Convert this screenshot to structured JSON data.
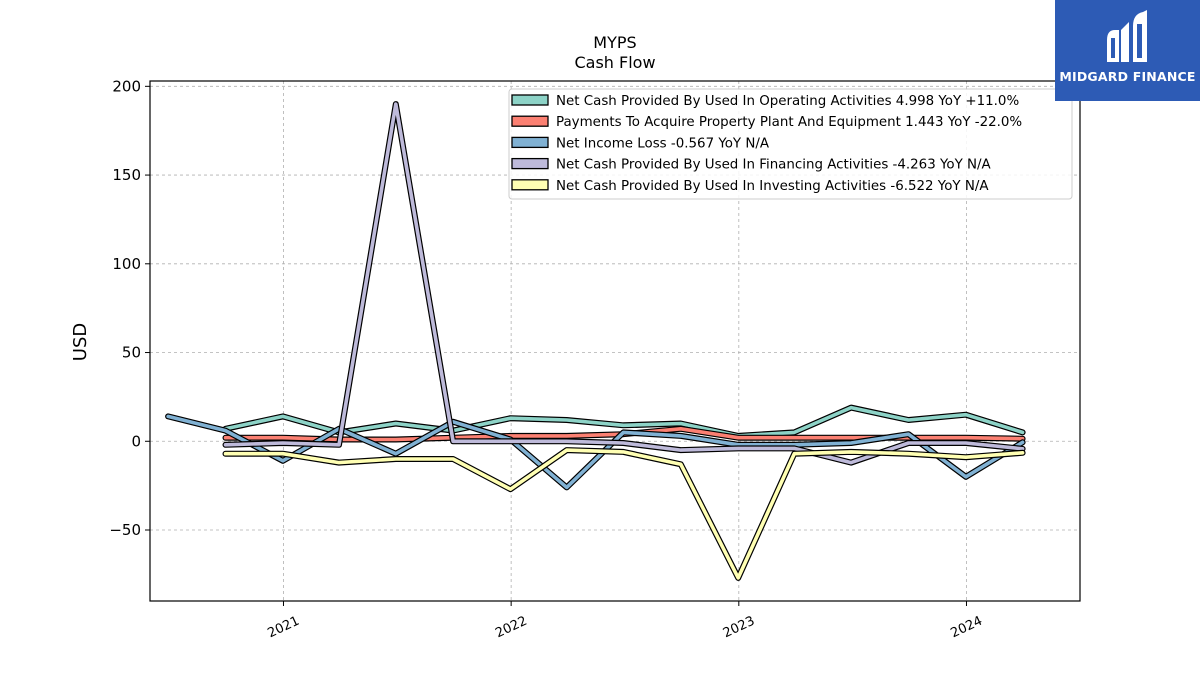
{
  "chart_data": {
    "type": "line",
    "title": "MYPS",
    "subtitle": "Cash Flow",
    "xlabel": "",
    "ylabel": "USD",
    "xlim": [
      "2020-06-01",
      "2024-07-01"
    ],
    "ylim": [
      -90,
      203
    ],
    "yticks": [
      200,
      150,
      100,
      50,
      0,
      -50
    ],
    "ytick_labels": [
      "200",
      "150",
      "100",
      "50",
      "0",
      "−50"
    ],
    "xticks": [
      "2021-01-01",
      "2022-01-01",
      "2023-01-01",
      "2024-01-01"
    ],
    "xtick_labels": [
      "2021",
      "2022",
      "2023",
      "2024"
    ],
    "grid": true,
    "legend_position": "top-right",
    "series": [
      {
        "name": "Net Cash Provided By Used In Operating Activities  4.998 YoY +11.0%",
        "color": "#8dd3c7",
        "points": [
          [
            "2020-09-30",
            7
          ],
          [
            "2020-12-31",
            14
          ],
          [
            "2021-03-31",
            5
          ],
          [
            "2021-06-30",
            10
          ],
          [
            "2021-09-30",
            6
          ],
          [
            "2021-12-31",
            13
          ],
          [
            "2022-03-31",
            12
          ],
          [
            "2022-06-30",
            9
          ],
          [
            "2022-09-30",
            10
          ],
          [
            "2022-12-31",
            3
          ],
          [
            "2023-03-31",
            5
          ],
          [
            "2023-06-30",
            19
          ],
          [
            "2023-09-30",
            12
          ],
          [
            "2023-12-31",
            15
          ],
          [
            "2024-03-31",
            5
          ]
        ]
      },
      {
        "name": "Payments To Acquire Property Plant And Equipment  1.443 YoY -22.0%",
        "color": "#fb8072",
        "points": [
          [
            "2020-09-30",
            2
          ],
          [
            "2020-12-31",
            2
          ],
          [
            "2021-03-31",
            1
          ],
          [
            "2021-06-30",
            1
          ],
          [
            "2021-09-30",
            2
          ],
          [
            "2021-12-31",
            3
          ],
          [
            "2022-03-31",
            3
          ],
          [
            "2022-06-30",
            4
          ],
          [
            "2022-09-30",
            7
          ],
          [
            "2022-12-31",
            2
          ],
          [
            "2023-03-31",
            2
          ],
          [
            "2023-06-30",
            2
          ],
          [
            "2023-09-30",
            2
          ],
          [
            "2023-12-31",
            2
          ],
          [
            "2024-03-31",
            1.443
          ]
        ]
      },
      {
        "name": "Net Income Loss  -0.567 YoY N/A",
        "color": "#80b1d3",
        "points": [
          [
            "2020-06-30",
            14
          ],
          [
            "2020-09-30",
            6
          ],
          [
            "2020-12-31",
            -11
          ],
          [
            "2021-03-31",
            7
          ],
          [
            "2021-06-30",
            -7
          ],
          [
            "2021-09-30",
            11
          ],
          [
            "2021-12-31",
            1
          ],
          [
            "2022-03-31",
            -26
          ],
          [
            "2022-06-30",
            5
          ],
          [
            "2022-09-30",
            3
          ],
          [
            "2022-12-31",
            -2
          ],
          [
            "2023-03-31",
            -2
          ],
          [
            "2023-06-30",
            -1
          ],
          [
            "2023-09-30",
            4
          ],
          [
            "2023-12-31",
            -20
          ],
          [
            "2024-03-31",
            -0.567
          ]
        ]
      },
      {
        "name": "Net Cash Provided By Used In Financing Activities  -4.263 YoY N/A",
        "color": "#bebada",
        "points": [
          [
            "2020-09-30",
            -2
          ],
          [
            "2020-12-31",
            -1
          ],
          [
            "2021-03-31",
            -2
          ],
          [
            "2021-06-30",
            190
          ],
          [
            "2021-09-30",
            0
          ],
          [
            "2021-12-31",
            0
          ],
          [
            "2022-03-31",
            0
          ],
          [
            "2022-06-30",
            -1
          ],
          [
            "2022-09-30",
            -5
          ],
          [
            "2022-12-31",
            -4
          ],
          [
            "2023-03-31",
            -4
          ],
          [
            "2023-06-30",
            -12
          ],
          [
            "2023-09-30",
            -1
          ],
          [
            "2023-12-31",
            -1
          ],
          [
            "2024-03-31",
            -4.263
          ]
        ]
      },
      {
        "name": "Net Cash Provided By Used In Investing Activities  -6.522 YoY N/A",
        "color": "#ffffb3",
        "points": [
          [
            "2020-09-30",
            -7
          ],
          [
            "2020-12-31",
            -7
          ],
          [
            "2021-03-31",
            -12
          ],
          [
            "2021-06-30",
            -10
          ],
          [
            "2021-09-30",
            -10
          ],
          [
            "2021-12-31",
            -27
          ],
          [
            "2022-03-31",
            -5
          ],
          [
            "2022-06-30",
            -6
          ],
          [
            "2022-09-30",
            -13
          ],
          [
            "2022-12-31",
            -77
          ],
          [
            "2023-03-31",
            -7
          ],
          [
            "2023-06-30",
            -6
          ],
          [
            "2023-09-30",
            -7
          ],
          [
            "2023-12-31",
            -9
          ],
          [
            "2024-03-31",
            -6.522
          ]
        ]
      }
    ]
  },
  "logo": {
    "text": "MIDGARD FINANCE",
    "background": "#2d5bb5"
  }
}
